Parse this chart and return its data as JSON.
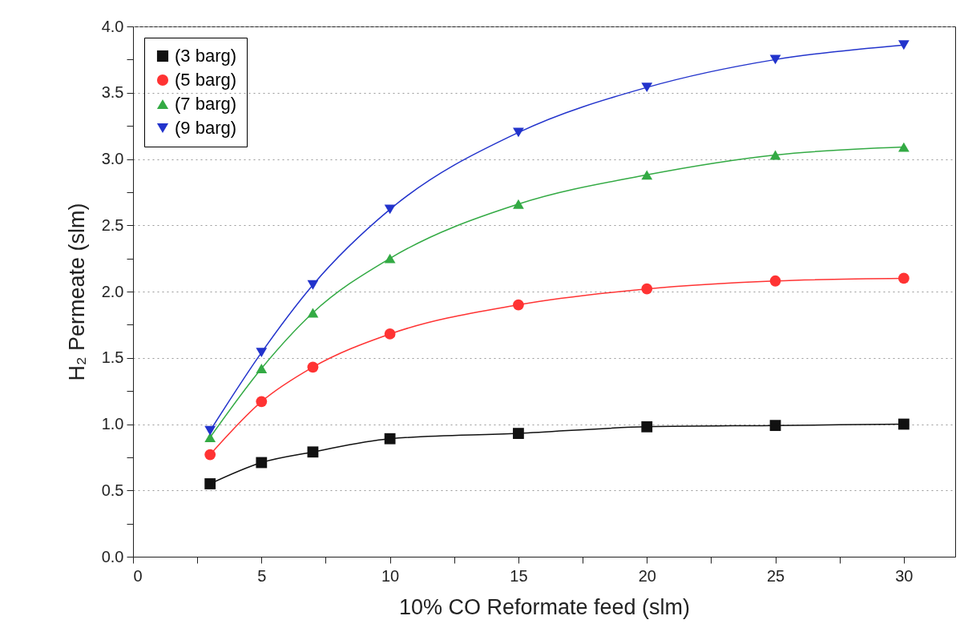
{
  "chart_data": {
    "type": "line",
    "xlabel": "10% CO Reformate feed (slm)",
    "ylabel": "H₂ Permeate (slm)",
    "x": [
      3,
      5,
      7,
      10,
      15,
      20,
      25,
      30
    ],
    "series": [
      {
        "name": "(3 barg)",
        "color": "#111111",
        "marker": "square",
        "values": [
          0.55,
          0.71,
          0.79,
          0.89,
          0.93,
          0.98,
          0.99,
          1.0
        ]
      },
      {
        "name": "(5 barg)",
        "color": "#ff3333",
        "marker": "circle",
        "values": [
          0.77,
          1.17,
          1.43,
          1.68,
          1.9,
          2.02,
          2.08,
          2.1
        ]
      },
      {
        "name": "(7 barg)",
        "color": "#33aa44",
        "marker": "triangle",
        "values": [
          0.9,
          1.42,
          1.84,
          2.25,
          2.66,
          2.88,
          3.03,
          3.09
        ]
      },
      {
        "name": "(9 barg)",
        "color": "#2233cc",
        "marker": "triangle-down",
        "values": [
          0.95,
          1.54,
          2.05,
          2.62,
          3.2,
          3.54,
          3.75,
          3.86
        ]
      }
    ],
    "xlim": [
      0,
      32
    ],
    "xticks": [
      0,
      {
        "value": 2.5,
        "label": null
      },
      5,
      {
        "value": 7.5,
        "label": null
      },
      10,
      {
        "value": 12.5,
        "label": null
      },
      15,
      {
        "value": 17.5,
        "label": null
      },
      20,
      {
        "value": 22.5,
        "label": null
      },
      25,
      {
        "value": 27.5,
        "label": null
      },
      30
    ],
    "ylim": [
      0,
      4
    ],
    "yticks": [
      {
        "value": 0,
        "label": "0.0"
      },
      {
        "value": 0.25,
        "label": null
      },
      {
        "value": 0.5,
        "label": "0.5"
      },
      {
        "value": 0.75,
        "label": null
      },
      {
        "value": 1,
        "label": "1.0"
      },
      {
        "value": 1.25,
        "label": null
      },
      {
        "value": 1.5,
        "label": "1.5"
      },
      {
        "value": 1.75,
        "label": null
      },
      {
        "value": 2,
        "label": "2.0"
      },
      {
        "value": 2.25,
        "label": null
      },
      {
        "value": 2.5,
        "label": "2.5"
      },
      {
        "value": 2.75,
        "label": null
      },
      {
        "value": 3,
        "label": "3.0"
      },
      {
        "value": 3.25,
        "label": null
      },
      {
        "value": 3.5,
        "label": "3.5"
      },
      {
        "value": 3.75,
        "label": null
      },
      {
        "value": 4,
        "label": "4.0"
      }
    ],
    "grid": "y",
    "legend": "top left",
    "line_style": "solid"
  }
}
